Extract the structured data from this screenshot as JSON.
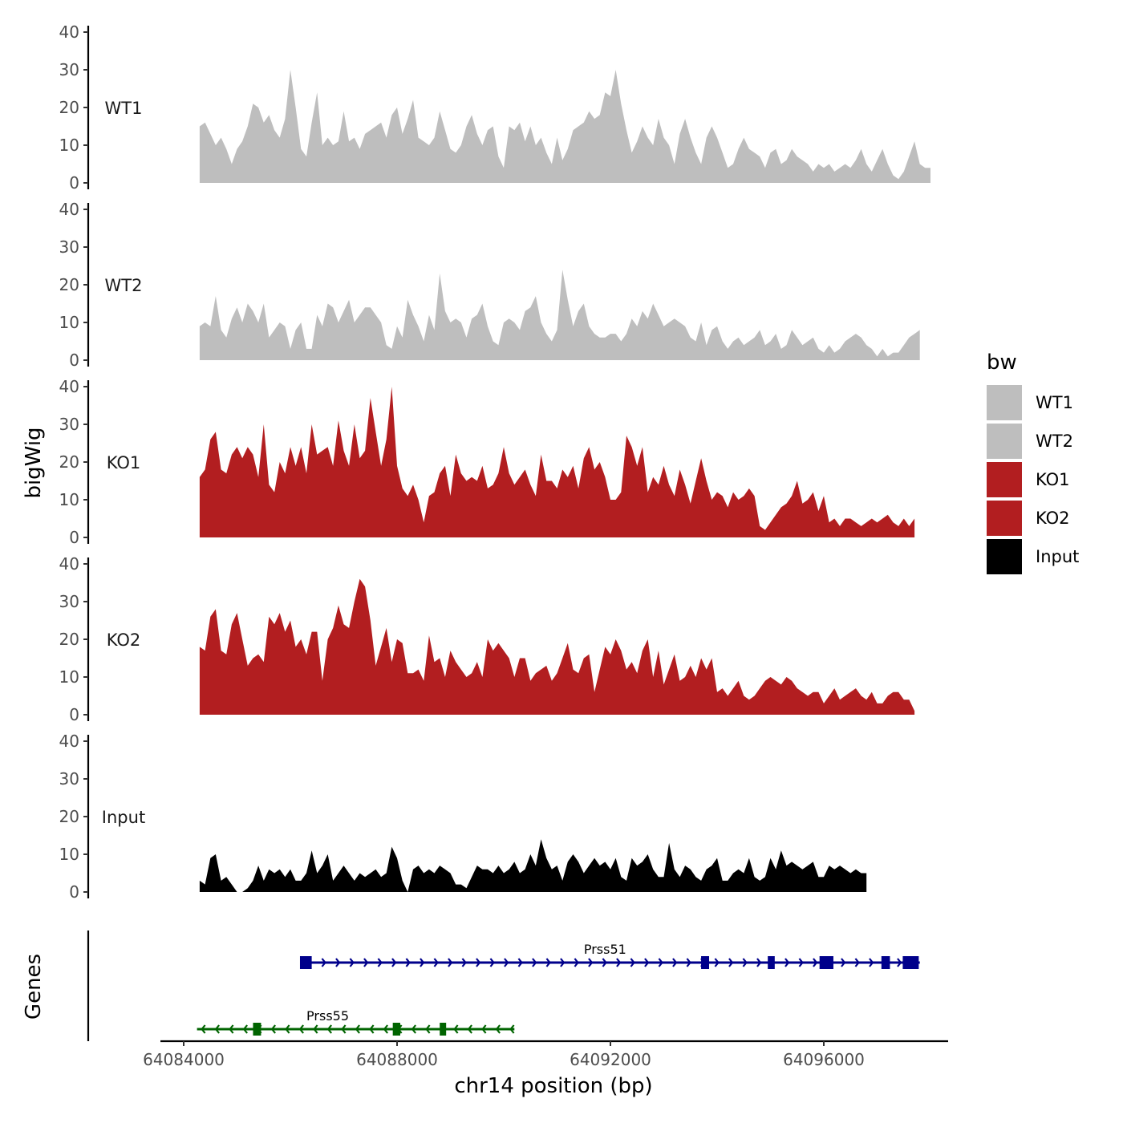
{
  "chart_data": {
    "type": "area",
    "xlabel": "chr14 position (bp)",
    "ylabel": "bigWig",
    "genes_ylabel": "Genes",
    "xlim": [
      64083450,
      64098550
    ],
    "ylim": [
      0,
      40
    ],
    "x_ticks": [
      64084000,
      64088000,
      64092000,
      64096000
    ],
    "x_tick_labels": [
      "64084000",
      "64088000",
      "64092000",
      "64096000"
    ],
    "y_ticks": [
      0,
      10,
      20,
      30,
      40
    ],
    "y_tick_labels": [
      "0",
      "10",
      "20",
      "30",
      "40"
    ],
    "x_start": 64084300,
    "x_step": 100,
    "legend": {
      "title": "bw",
      "items": [
        {
          "label": "WT1",
          "color": "#bebebe"
        },
        {
          "label": "WT2",
          "color": "#bebebe"
        },
        {
          "label": "KO1",
          "color": "#b21e20"
        },
        {
          "label": "KO2",
          "color": "#b21e20"
        },
        {
          "label": "Input",
          "color": "#000000"
        }
      ]
    },
    "series": [
      {
        "name": "WT1",
        "color": "#bebebe",
        "values": [
          15,
          16,
          13,
          10,
          12,
          9,
          5,
          9,
          11,
          15,
          21,
          20,
          16,
          18,
          14,
          12,
          17,
          30,
          20,
          9,
          7,
          16,
          24,
          10,
          12,
          10,
          11,
          19,
          11,
          12,
          9,
          13,
          14,
          15,
          16,
          12,
          18,
          20,
          13,
          17,
          22,
          12,
          11,
          10,
          12,
          19,
          14,
          9,
          8,
          10,
          15,
          18,
          13,
          10,
          14,
          15,
          7,
          4,
          15,
          14,
          16,
          11,
          15,
          10,
          12,
          8,
          5,
          12,
          6,
          9,
          14,
          15,
          16,
          19,
          17,
          18,
          24,
          23,
          30,
          21,
          14,
          8,
          11,
          15,
          12,
          10,
          17,
          12,
          10,
          5,
          13,
          17,
          12,
          8,
          5,
          12,
          15,
          12,
          8,
          4,
          5,
          9,
          12,
          9,
          8,
          7,
          4,
          8,
          9,
          5,
          6,
          9,
          7,
          6,
          5,
          3,
          5,
          4,
          5,
          3,
          4,
          5,
          4,
          6,
          9,
          5,
          3,
          6,
          9,
          5,
          2,
          1,
          3,
          7,
          11,
          5,
          4,
          4
        ]
      },
      {
        "name": "WT2",
        "color": "#bebebe",
        "values": [
          9,
          10,
          9,
          17,
          8,
          6,
          11,
          14,
          10,
          15,
          13,
          10,
          15,
          6,
          8,
          10,
          9,
          3,
          8,
          10,
          3,
          3,
          12,
          9,
          15,
          14,
          10,
          13,
          16,
          10,
          12,
          14,
          14,
          12,
          10,
          4,
          3,
          9,
          6,
          16,
          12,
          9,
          5,
          12,
          8,
          23,
          13,
          10,
          11,
          10,
          6,
          11,
          12,
          15,
          9,
          5,
          4,
          10,
          11,
          10,
          8,
          13,
          14,
          17,
          10,
          7,
          5,
          8,
          24,
          16,
          9,
          13,
          15,
          9,
          7,
          6,
          6,
          7,
          7,
          5,
          7,
          11,
          9,
          13,
          11,
          15,
          12,
          9,
          10,
          11,
          10,
          9,
          6,
          5,
          10,
          4,
          8,
          9,
          5,
          3,
          5,
          6,
          4,
          5,
          6,
          8,
          4,
          5,
          7,
          3,
          4,
          8,
          6,
          4,
          5,
          6,
          3,
          2,
          4,
          2,
          3,
          5,
          6,
          7,
          6,
          4,
          3,
          1,
          3,
          1,
          2,
          2,
          4,
          6,
          7,
          8
        ]
      },
      {
        "name": "KO1",
        "color": "#b21e20",
        "values": [
          16,
          18,
          26,
          28,
          18,
          17,
          22,
          24,
          21,
          24,
          22,
          16,
          30,
          14,
          12,
          20,
          17,
          24,
          19,
          24,
          17,
          30,
          22,
          23,
          24,
          19,
          31,
          23,
          19,
          30,
          21,
          23,
          37,
          28,
          19,
          26,
          40,
          19,
          13,
          11,
          14,
          10,
          4,
          11,
          12,
          17,
          19,
          11,
          22,
          17,
          15,
          16,
          15,
          19,
          13,
          14,
          17,
          24,
          17,
          14,
          16,
          18,
          14,
          11,
          22,
          15,
          15,
          13,
          18,
          16,
          19,
          13,
          21,
          24,
          18,
          20,
          16,
          10,
          10,
          12,
          27,
          24,
          19,
          24,
          12,
          16,
          14,
          19,
          14,
          11,
          18,
          14,
          9,
          15,
          21,
          15,
          10,
          12,
          11,
          8,
          12,
          10,
          11,
          13,
          11,
          3,
          2,
          4,
          6,
          8,
          9,
          11,
          15,
          9,
          10,
          12,
          7,
          11,
          4,
          5,
          3,
          5,
          5,
          4,
          3,
          4,
          5,
          4,
          5,
          6,
          4,
          3,
          5,
          3,
          5
        ]
      },
      {
        "name": "KO2",
        "color": "#b21e20",
        "values": [
          18,
          17,
          26,
          28,
          17,
          16,
          24,
          27,
          20,
          13,
          15,
          16,
          14,
          26,
          24,
          27,
          22,
          25,
          18,
          20,
          16,
          22,
          22,
          9,
          20,
          23,
          29,
          24,
          23,
          30,
          36,
          34,
          25,
          13,
          18,
          23,
          14,
          20,
          19,
          11,
          11,
          12,
          9,
          21,
          14,
          15,
          10,
          17,
          14,
          12,
          10,
          11,
          14,
          10,
          20,
          17,
          19,
          17,
          15,
          10,
          15,
          15,
          9,
          11,
          12,
          13,
          9,
          11,
          15,
          19,
          12,
          11,
          15,
          16,
          6,
          12,
          18,
          16,
          20,
          17,
          12,
          14,
          11,
          17,
          20,
          10,
          17,
          8,
          12,
          16,
          9,
          10,
          13,
          10,
          15,
          12,
          15,
          6,
          7,
          5,
          7,
          9,
          5,
          4,
          5,
          7,
          9,
          10,
          9,
          8,
          10,
          9,
          7,
          6,
          5,
          6,
          6,
          3,
          5,
          7,
          4,
          5,
          6,
          7,
          5,
          4,
          6,
          3,
          3,
          5,
          6,
          6,
          4,
          4,
          1
        ]
      },
      {
        "name": "Input",
        "color": "#000000",
        "values": [
          3,
          2,
          9,
          10,
          3,
          4,
          2,
          0,
          0,
          1,
          3,
          7,
          3,
          6,
          5,
          6,
          4,
          6,
          3,
          3,
          5,
          11,
          5,
          7,
          10,
          3,
          5,
          7,
          5,
          3,
          5,
          4,
          5,
          6,
          4,
          5,
          12,
          9,
          3,
          0,
          6,
          7,
          5,
          6,
          5,
          7,
          6,
          5,
          2,
          2,
          1,
          4,
          7,
          6,
          6,
          5,
          7,
          5,
          6,
          8,
          5,
          6,
          10,
          7,
          14,
          9,
          6,
          7,
          3,
          8,
          10,
          8,
          5,
          7,
          9,
          7,
          8,
          6,
          9,
          4,
          3,
          9,
          7,
          8,
          10,
          6,
          4,
          4,
          13,
          6,
          4,
          7,
          6,
          4,
          3,
          6,
          7,
          9,
          3,
          3,
          5,
          6,
          5,
          9,
          4,
          3,
          4,
          9,
          6,
          11,
          7,
          8,
          7,
          6,
          7,
          8,
          4,
          4,
          7,
          6,
          7,
          6,
          5,
          6,
          5,
          5
        ]
      }
    ],
    "genes": [
      {
        "name": "Prss51",
        "color": "#00008b",
        "strand": "+",
        "start": 64086300,
        "end": 64097800,
        "row": 1,
        "exons": [
          [
            64086180,
            64086400
          ],
          [
            64093700,
            64093850
          ],
          [
            64094950,
            64095080
          ],
          [
            64095920,
            64096180
          ],
          [
            64097080,
            64097240
          ],
          [
            64097480,
            64097780
          ]
        ]
      },
      {
        "name": "Prss55",
        "color": "#006400",
        "strand": "-",
        "start": 64084250,
        "end": 64090200,
        "row": 2,
        "exons": [
          [
            64085300,
            64085450
          ],
          [
            64087920,
            64088060
          ],
          [
            64088800,
            64088920
          ]
        ]
      }
    ]
  }
}
